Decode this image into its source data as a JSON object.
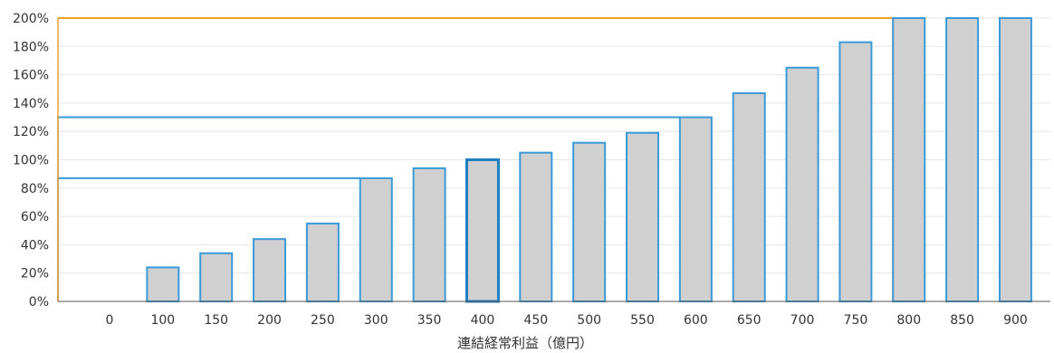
{
  "chart_data": {
    "type": "bar",
    "xlabel": "連結経常利益（億円）",
    "ylabel": "",
    "ylim": [
      0,
      200
    ],
    "y_ticks": [
      "0%",
      "20%",
      "40%",
      "60%",
      "80%",
      "100%",
      "120%",
      "140%",
      "160%",
      "180%",
      "200%"
    ],
    "categories": [
      "0",
      "100",
      "150",
      "200",
      "250",
      "300",
      "350",
      "400",
      "450",
      "500",
      "550",
      "600",
      "650",
      "700",
      "750",
      "800",
      "850",
      "900"
    ],
    "values": [
      0,
      24,
      34,
      44,
      55,
      87,
      94,
      100,
      105,
      112,
      119,
      130,
      147,
      165,
      183,
      200,
      200,
      200
    ],
    "highlight_category": "400",
    "reference_lines": [
      {
        "y": 87,
        "to_category": "300",
        "color": "#3a9ad9"
      },
      {
        "y": 130,
        "to_category": "600",
        "color": "#3a9ad9"
      },
      {
        "y": 200,
        "to_category": "800",
        "color": "#f0a030"
      }
    ],
    "grid": true,
    "colors": {
      "bar_fill": "#d0d0d0",
      "bar_stroke": "#3a9ad9",
      "highlight_stroke": "#1e7fc0",
      "grid": "#e6e6e6",
      "axis": "#555555"
    }
  }
}
